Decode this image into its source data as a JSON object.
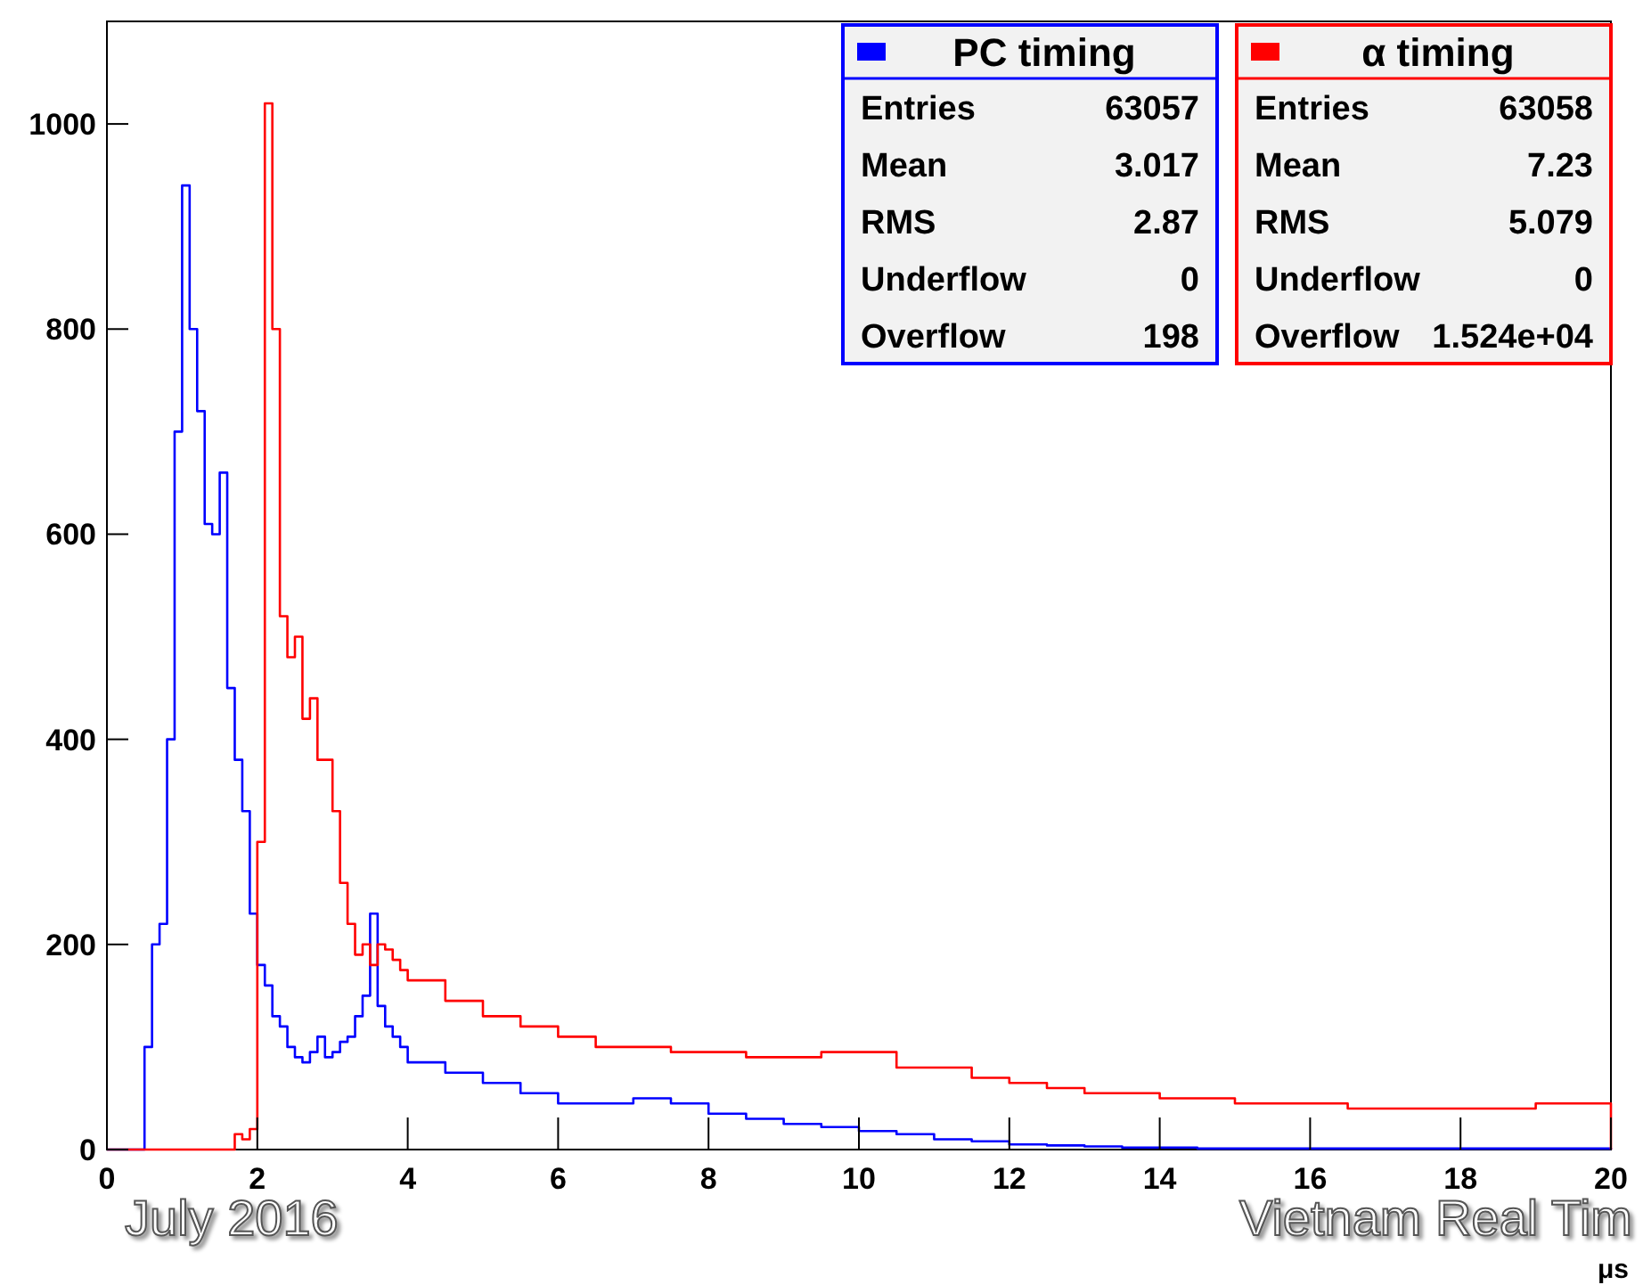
{
  "chart_data": {
    "type": "histogram",
    "xlabel": "μs",
    "legend": "top right",
    "bins": [
      0,
      0.1,
      0.2,
      0.3,
      0.4,
      0.5,
      0.6,
      0.7,
      0.8,
      0.9,
      1,
      1.1,
      1.2,
      1.3,
      1.4,
      1.5,
      1.6,
      1.7,
      1.8,
      1.9,
      2,
      2.1,
      2.2,
      2.3,
      2.4,
      2.5,
      2.6,
      2.7,
      2.8,
      2.9,
      3,
      3.1,
      3.2,
      3.3,
      3.4,
      3.5,
      3.6,
      3.7,
      3.8,
      3.9,
      4,
      4.5,
      5,
      5.5,
      6,
      6.5,
      7,
      7.5,
      8,
      8.5,
      9,
      9.5,
      10,
      10.5,
      11,
      11.5,
      12,
      12.5,
      13,
      13.5,
      14,
      14.5,
      15,
      15.5,
      16,
      16.5,
      17,
      17.5,
      18,
      18.5,
      19,
      19.5,
      20
    ],
    "series": [
      {
        "name": "PC timing",
        "color": "#0000ff",
        "values": [
          0,
          0,
          0,
          0,
          0,
          100,
          200,
          220,
          400,
          700,
          940,
          800,
          720,
          610,
          600,
          660,
          450,
          380,
          330,
          230,
          180,
          160,
          130,
          120,
          100,
          90,
          85,
          95,
          110,
          90,
          95,
          105,
          110,
          130,
          150,
          230,
          140,
          120,
          110,
          100,
          85,
          75,
          65,
          55,
          45,
          45,
          50,
          45,
          35,
          30,
          25,
          22,
          18,
          15,
          10,
          8,
          5,
          4,
          3,
          2,
          2,
          1,
          1,
          1,
          1,
          1,
          1,
          1,
          1,
          1,
          1,
          1
        ]
      },
      {
        "name": "α timing",
        "color": "#ff0000",
        "values": [
          0,
          0,
          0,
          0,
          0,
          0,
          0,
          0,
          0,
          0,
          0,
          0,
          0,
          0,
          0,
          0,
          0,
          15,
          10,
          20,
          300,
          1020,
          800,
          520,
          480,
          500,
          420,
          440,
          380,
          380,
          330,
          260,
          220,
          190,
          200,
          180,
          200,
          195,
          185,
          175,
          165,
          145,
          130,
          120,
          110,
          100,
          100,
          95,
          95,
          90,
          90,
          95,
          95,
          80,
          80,
          70,
          65,
          60,
          55,
          55,
          50,
          50,
          45,
          45,
          45,
          40,
          40,
          40,
          40,
          40,
          45,
          45
        ]
      }
    ],
    "xlim": [
      0,
      20
    ],
    "xticks": [
      0,
      2,
      4,
      6,
      8,
      10,
      12,
      14,
      16,
      18,
      20
    ],
    "ylim": [
      0,
      1100
    ],
    "yticks": [
      0,
      200,
      400,
      600,
      800,
      1000
    ],
    "annotations": [
      "Entries",
      "63057",
      "Mean",
      "3.017",
      "RMS",
      "2.87",
      "Underflow",
      "0",
      "Overflow",
      "198",
      "Entries",
      "63058",
      "Mean",
      "7.23",
      "RMS",
      "5.079",
      "Underflow",
      "0",
      "Overflow",
      "1.524e+04",
      "July 2016",
      "Vietnam Real Tim"
    ]
  }
}
